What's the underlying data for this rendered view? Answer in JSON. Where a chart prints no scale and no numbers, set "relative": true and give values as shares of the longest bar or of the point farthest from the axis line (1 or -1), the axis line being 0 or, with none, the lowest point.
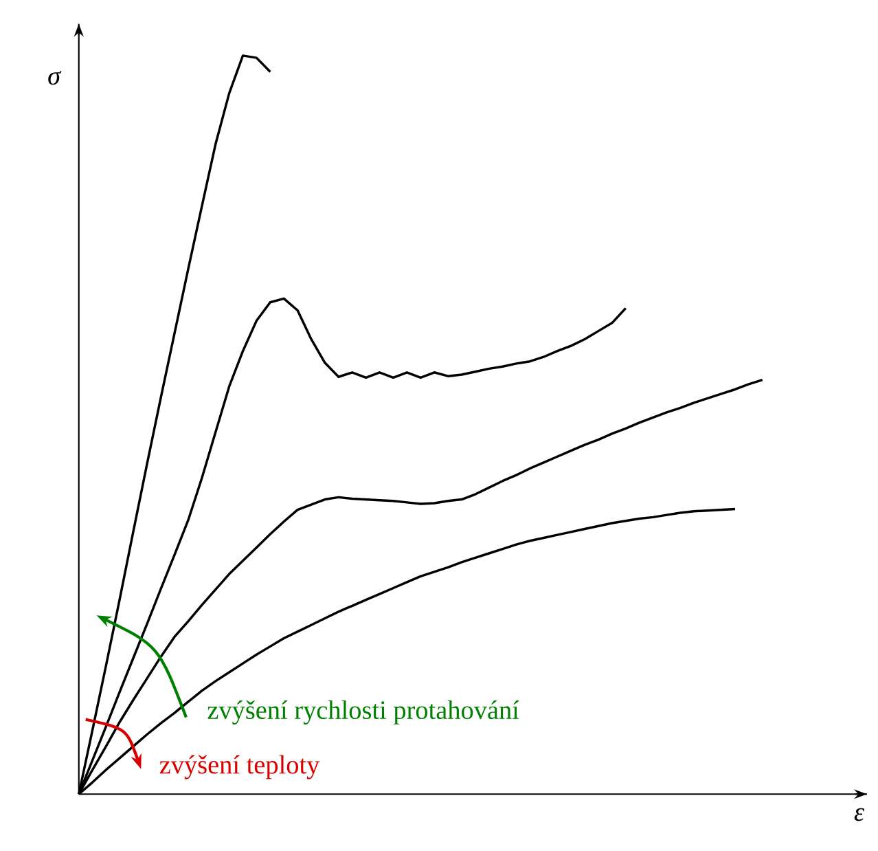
{
  "chart_data": {
    "type": "line",
    "relative": true,
    "xlabel": "ε",
    "ylabel": "σ",
    "categories": [
      null,
      null,
      null,
      null,
      null,
      null,
      null,
      null,
      null,
      null,
      null,
      null,
      null,
      null,
      null,
      null,
      null,
      null,
      null,
      null,
      null,
      null,
      null,
      null,
      null,
      null,
      null,
      null,
      null,
      null,
      null,
      null,
      null,
      null,
      null,
      null,
      null,
      null,
      null,
      null,
      null,
      null,
      null,
      null,
      null,
      null,
      null,
      null,
      null,
      null,
      null
    ],
    "series": [
      {
        "color": "#000000",
        "values": [
          0,
          0.087,
          0.175,
          0.265,
          0.357,
          0.448,
          0.537,
          0.624,
          0.711,
          0.796,
          0.88,
          0.949,
          1,
          0.997,
          0.978,
          null,
          null,
          null,
          null,
          null,
          null,
          null,
          null,
          null,
          null,
          null,
          null,
          null,
          null,
          null,
          null,
          null,
          null,
          null,
          null,
          null,
          null,
          null,
          null,
          null,
          null,
          null,
          null,
          null,
          null,
          null,
          null,
          null,
          null,
          null,
          null
        ]
      },
      {
        "color": "#000000",
        "values": [
          0,
          0.046,
          0.092,
          0.139,
          0.185,
          0.231,
          0.278,
          0.324,
          0.371,
          0.428,
          0.49,
          0.552,
          0.6,
          0.641,
          0.666,
          0.671,
          0.655,
          0.616,
          0.584,
          0.565,
          0.571,
          0.564,
          0.571,
          0.564,
          0.571,
          0.564,
          0.571,
          0.566,
          0.568,
          0.572,
          0.576,
          0.579,
          0.583,
          0.586,
          0.592,
          0.6,
          0.607,
          0.616,
          0.627,
          0.638,
          0.658,
          null,
          null,
          null,
          null,
          null,
          null,
          null,
          null,
          null,
          null
        ]
      },
      {
        "color": "#000000",
        "values": [
          0,
          0.033,
          0.065,
          0.098,
          0.128,
          0.157,
          0.186,
          0.213,
          0.234,
          0.256,
          0.277,
          0.298,
          0.316,
          0.334,
          0.352,
          0.369,
          0.385,
          0.392,
          0.399,
          0.402,
          0.4,
          0.399,
          0.398,
          0.397,
          0.395,
          0.393,
          0.394,
          0.397,
          0.399,
          0.406,
          0.415,
          0.424,
          0.432,
          0.441,
          0.449,
          0.457,
          0.465,
          0.473,
          0.48,
          0.488,
          0.495,
          0.503,
          0.51,
          0.517,
          0.523,
          0.53,
          0.536,
          0.542,
          0.548,
          0.555,
          0.561
        ]
      },
      {
        "color": "#000000",
        "values": [
          0,
          0.016,
          0.033,
          0.049,
          0.065,
          0.081,
          0.096,
          0.11,
          0.125,
          0.14,
          0.153,
          0.165,
          0.177,
          0.189,
          0.2,
          0.211,
          0.22,
          0.229,
          0.238,
          0.247,
          0.255,
          0.263,
          0.271,
          0.279,
          0.287,
          0.295,
          0.301,
          0.307,
          0.314,
          0.32,
          0.326,
          0.332,
          0.338,
          0.343,
          0.347,
          0.351,
          0.355,
          0.359,
          0.363,
          0.367,
          0.37,
          0.373,
          0.375,
          0.378,
          0.381,
          0.383,
          0.384,
          0.385,
          0.386,
          null,
          null
        ]
      }
    ],
    "annotations": [
      "zvýšení rychlosti protahování",
      "zvýšení teploty"
    ]
  }
}
